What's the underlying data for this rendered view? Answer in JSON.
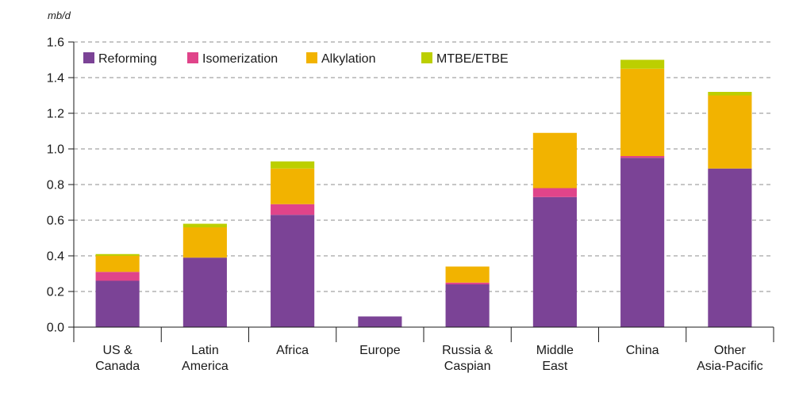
{
  "chart_data": {
    "type": "bar",
    "stacked": true,
    "ylabel": "mb/d",
    "ylim": [
      0,
      1.6
    ],
    "yticks": [
      "0.0",
      "0.2",
      "0.4",
      "0.6",
      "0.8",
      "1.0",
      "1.2",
      "1.4",
      "1.6"
    ],
    "grid": "horizontal dashed",
    "legend_position": "top-left",
    "categories": [
      [
        "US &",
        "Canada"
      ],
      [
        "Latin",
        "America"
      ],
      [
        "Africa"
      ],
      [
        "Europe"
      ],
      [
        "Russia &",
        "Caspian"
      ],
      [
        "Middle",
        "East"
      ],
      [
        "China"
      ],
      [
        "Other",
        "Asia-Pacific"
      ]
    ],
    "series": [
      {
        "name": "Reforming",
        "color": "#7b4396",
        "values": [
          0.26,
          0.39,
          0.63,
          0.06,
          0.24,
          0.73,
          0.95,
          0.89
        ]
      },
      {
        "name": "Isomerization",
        "color": "#e0448a",
        "values": [
          0.05,
          0.0,
          0.06,
          0.0,
          0.01,
          0.05,
          0.01,
          0.0
        ]
      },
      {
        "name": "Alkylation",
        "color": "#f2b300",
        "values": [
          0.09,
          0.17,
          0.2,
          0.0,
          0.09,
          0.31,
          0.49,
          0.41
        ]
      },
      {
        "name": "MTBE/ETBE",
        "color": "#bccf00",
        "values": [
          0.01,
          0.02,
          0.04,
          0.0,
          0.0,
          0.0,
          0.05,
          0.02
        ]
      }
    ]
  }
}
